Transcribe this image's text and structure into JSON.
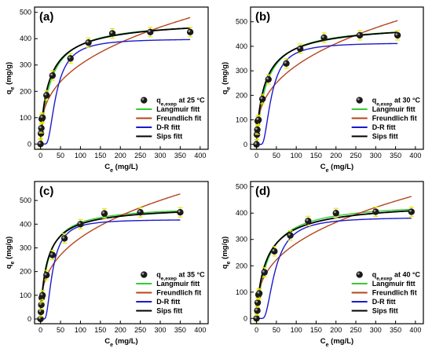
{
  "chart_data": [
    {
      "type": "scatter",
      "panel_label": "(a)",
      "xlabel": "C_e (mg/L)",
      "ylabel": "q_e (mg/g)",
      "xlim": [
        -15,
        420
      ],
      "ylim": [
        -20,
        520
      ],
      "xticks": [
        0,
        50,
        100,
        150,
        200,
        250,
        300,
        350,
        400
      ],
      "yticks": [
        0,
        100,
        200,
        300,
        400,
        500
      ],
      "experimental": {
        "name": "q_e,exep at 25 °C",
        "name_main": "q",
        "name_sub": "e,exep",
        "name_rest": " at 25 °C",
        "x": [
          0,
          1,
          2,
          3,
          5,
          15,
          30,
          75,
          120,
          180,
          275,
          375
        ],
        "y": [
          0,
          40,
          60,
          95,
          100,
          185,
          260,
          325,
          385,
          420,
          425,
          425
        ]
      },
      "fits": [
        {
          "name": "Langmuir fitt",
          "color": "#33cc33",
          "model": "langmuir",
          "params": {
            "qm": 470,
            "K": 0.04
          }
        },
        {
          "name": "Freundlich fit",
          "color": "#b5451c",
          "model": "freundlich",
          "params": {
            "Kf": 60,
            "n": 2.85
          }
        },
        {
          "name": "D-R fitt",
          "color": "#1a1acc",
          "model": "dr",
          "params": {
            "qm": 400,
            "B": 1200
          }
        },
        {
          "name": "Sips fitt",
          "color": "#000000",
          "model": "sips",
          "params": {
            "qm": 480,
            "K": 0.045,
            "n": 0.85
          }
        }
      ]
    },
    {
      "type": "scatter",
      "panel_label": "(b)",
      "xlabel": "C_e (mg/L)",
      "ylabel": "q_e (mg/g)",
      "xlim": [
        -15,
        420
      ],
      "ylim": [
        -20,
        560
      ],
      "xticks": [
        0,
        50,
        100,
        150,
        200,
        250,
        300,
        350,
        400
      ],
      "yticks": [
        0,
        100,
        200,
        300,
        400,
        500
      ],
      "experimental": {
        "name": "q_e,exep at 30 °C",
        "name_main": "q",
        "name_sub": "e,exep",
        "name_rest": " at 30 °C",
        "x": [
          0,
          1,
          2,
          3,
          5,
          15,
          30,
          75,
          110,
          170,
          260,
          355
        ],
        "y": [
          0,
          40,
          60,
          95,
          100,
          185,
          265,
          330,
          390,
          435,
          445,
          445
        ]
      },
      "fits": [
        {
          "name": "Langmuir fitt",
          "color": "#33cc33",
          "model": "langmuir",
          "params": {
            "qm": 490,
            "K": 0.04
          }
        },
        {
          "name": "Freundlich fit",
          "color": "#b5451c",
          "model": "freundlich",
          "params": {
            "Kf": 62,
            "n": 2.8
          }
        },
        {
          "name": "D-R fitt",
          "color": "#1a1acc",
          "model": "dr",
          "params": {
            "qm": 415,
            "B": 1100
          }
        },
        {
          "name": "Sips fitt",
          "color": "#000000",
          "model": "sips",
          "params": {
            "qm": 500,
            "K": 0.045,
            "n": 0.85
          }
        }
      ]
    },
    {
      "type": "scatter",
      "panel_label": "(c)",
      "xlabel": "C_e (mg/L)",
      "ylabel": "q_e (mg/g)",
      "xlim": [
        -15,
        420
      ],
      "ylim": [
        -20,
        580
      ],
      "xticks": [
        0,
        50,
        100,
        150,
        200,
        250,
        300,
        350,
        400
      ],
      "yticks": [
        0,
        100,
        200,
        300,
        400,
        500
      ],
      "experimental": {
        "name": "q_e,exep at 35 °C",
        "name_main": "q",
        "name_sub": "e,exep",
        "name_rest": " at 35 °C",
        "x": [
          0,
          1,
          2,
          3,
          5,
          15,
          30,
          60,
          100,
          160,
          250,
          350
        ],
        "y": [
          0,
          30,
          60,
          90,
          100,
          185,
          270,
          340,
          400,
          445,
          450,
          450
        ]
      },
      "fits": [
        {
          "name": "Langmuir fitt",
          "color": "#33cc33",
          "model": "langmuir",
          "params": {
            "qm": 480,
            "K": 0.055
          }
        },
        {
          "name": "Freundlich fit",
          "color": "#b5451c",
          "model": "freundlich",
          "params": {
            "Kf": 70,
            "n": 2.9
          }
        },
        {
          "name": "D-R fitt",
          "color": "#1a1acc",
          "model": "dr",
          "params": {
            "qm": 420,
            "B": 700
          }
        },
        {
          "name": "Sips fitt",
          "color": "#000000",
          "model": "sips",
          "params": {
            "qm": 480,
            "K": 0.06,
            "n": 0.9
          }
        }
      ]
    },
    {
      "type": "scatter",
      "panel_label": "(d)",
      "xlabel": "C_e (mg/L)",
      "ylabel": "q_e (mg/g)",
      "xlim": [
        -15,
        420
      ],
      "ylim": [
        -20,
        520
      ],
      "xticks": [
        0,
        50,
        100,
        150,
        200,
        250,
        300,
        350,
        400
      ],
      "yticks": [
        0,
        100,
        200,
        300,
        400,
        500
      ],
      "experimental": {
        "name": "q_e,exep at 40 °C",
        "name_main": "q",
        "name_sub": "e,exep",
        "name_rest": " at 40 °C",
        "x": [
          0,
          2,
          3,
          5,
          7,
          20,
          45,
          85,
          130,
          200,
          300,
          390
        ],
        "y": [
          0,
          30,
          60,
          90,
          95,
          175,
          255,
          315,
          370,
          400,
          405,
          405
        ]
      },
      "fits": [
        {
          "name": "Langmuir fitt",
          "color": "#33cc33",
          "model": "langmuir",
          "params": {
            "qm": 445,
            "K": 0.035
          }
        },
        {
          "name": "Freundlich fit",
          "color": "#b5451c",
          "model": "freundlich",
          "params": {
            "Kf": 55,
            "n": 2.8
          }
        },
        {
          "name": "D-R fitt",
          "color": "#1a1acc",
          "model": "dr",
          "params": {
            "qm": 385,
            "B": 1700
          }
        },
        {
          "name": "Sips fitt",
          "color": "#000000",
          "model": "sips",
          "params": {
            "qm": 450,
            "K": 0.038,
            "n": 0.85
          }
        }
      ]
    }
  ]
}
